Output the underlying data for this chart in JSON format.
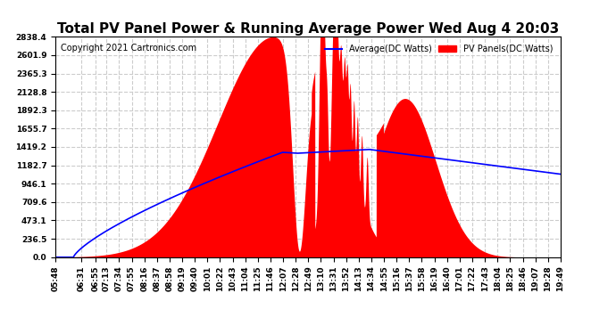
{
  "title": "Total PV Panel Power & Running Average Power Wed Aug 4 20:03",
  "copyright": "Copyright 2021 Cartronics.com",
  "legend_avg": "Average(DC Watts)",
  "legend_pv": "PV Panels(DC Watts)",
  "yticks": [
    0.0,
    236.5,
    473.1,
    709.6,
    946.1,
    1182.7,
    1419.2,
    1655.7,
    1892.3,
    2128.8,
    2365.3,
    2601.9,
    2838.4
  ],
  "ymax": 2838.4,
  "bg_color": "#ffffff",
  "grid_color": "#cccccc",
  "fill_color": "#ff0000",
  "avg_color": "#0000ff",
  "title_fontsize": 11,
  "copyright_fontsize": 7,
  "tick_fontsize": 6.5,
  "xtick_labels": [
    "05:48",
    "06:31",
    "06:55",
    "07:13",
    "07:34",
    "07:55",
    "08:16",
    "08:37",
    "08:58",
    "09:19",
    "09:40",
    "10:01",
    "10:22",
    "10:43",
    "11:04",
    "11:25",
    "11:46",
    "12:07",
    "12:28",
    "12:49",
    "13:10",
    "13:31",
    "13:52",
    "14:13",
    "14:34",
    "14:55",
    "15:16",
    "15:37",
    "15:58",
    "16:19",
    "16:40",
    "17:01",
    "17:22",
    "17:43",
    "18:04",
    "18:25",
    "18:46",
    "19:07",
    "19:28",
    "19:49"
  ]
}
